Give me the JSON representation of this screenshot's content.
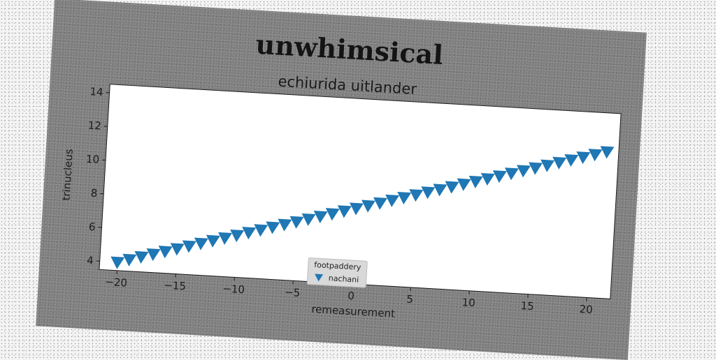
{
  "chart_data": {
    "type": "scatter",
    "title": "unwhimsical",
    "subtitle": "echiurida uitlander",
    "xlabel": "remeasurement",
    "ylabel": "trinucleus",
    "xlim": [
      -21.5,
      22
    ],
    "ylim": [
      3.5,
      14.5
    ],
    "xticks": [
      -20,
      -15,
      -10,
      -5,
      0,
      5,
      10,
      15,
      20
    ],
    "yticks": [
      4,
      6,
      8,
      10,
      12,
      14
    ],
    "grid": false,
    "legend": {
      "title": "footpaddery",
      "placement": "bottom-center"
    },
    "series": [
      {
        "name": "nachani",
        "marker": "triangle-down",
        "color": "#1f77b4",
        "x_start": -20,
        "x_end": 21,
        "x_step": 1,
        "y_start": 4.0,
        "y_end": 12.2
      }
    ]
  }
}
